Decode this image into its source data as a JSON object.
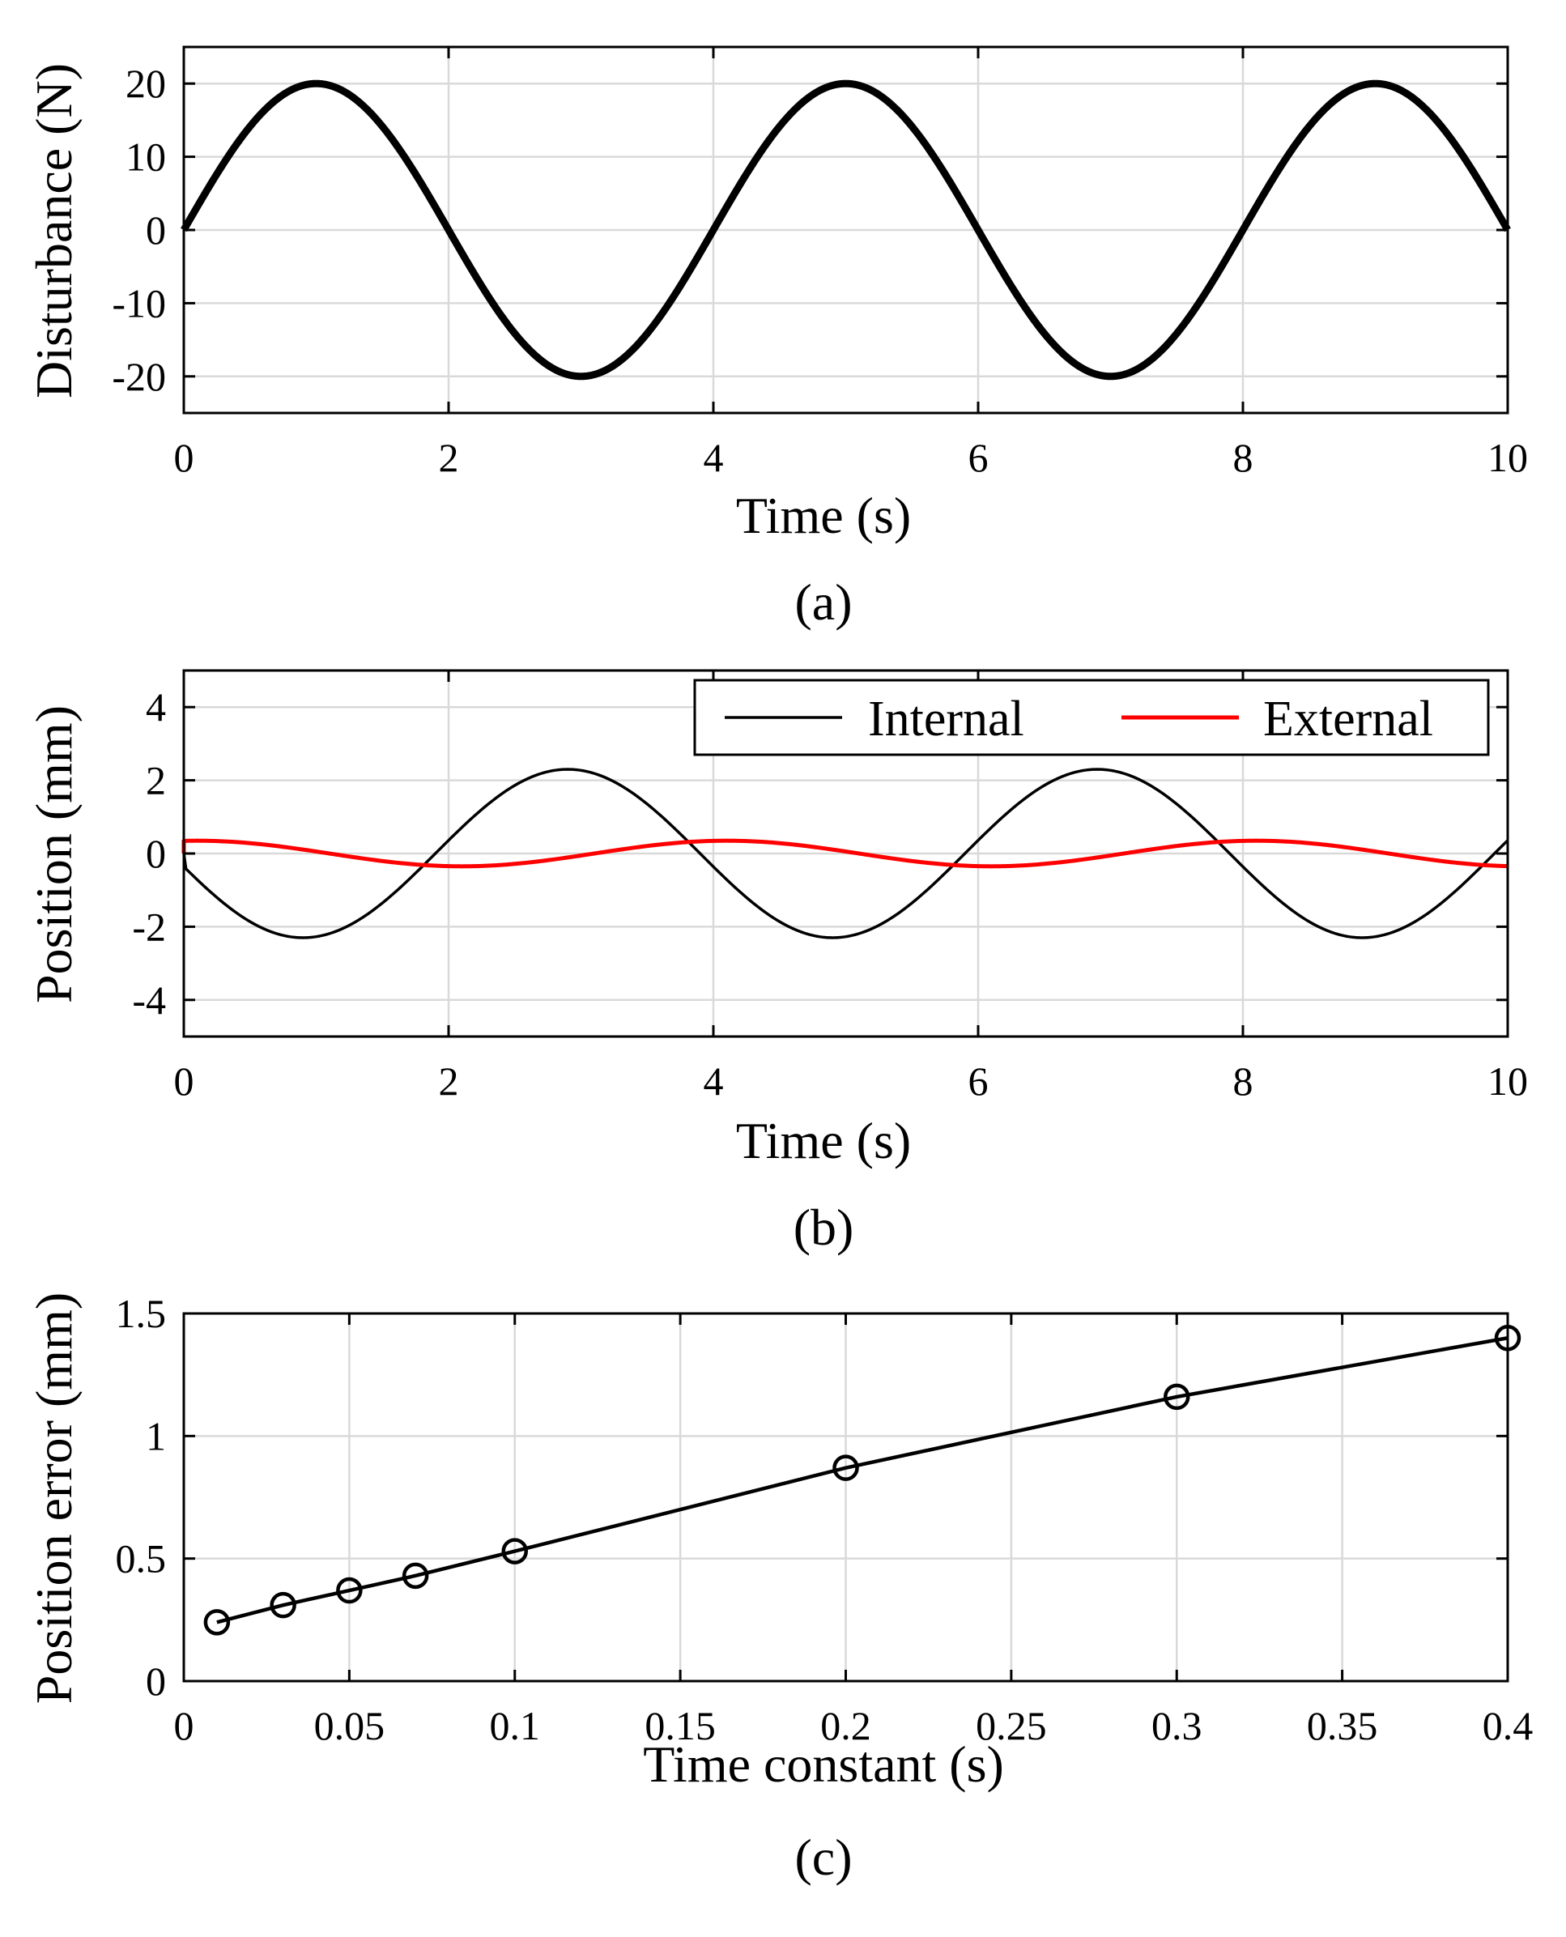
{
  "chart_data": [
    {
      "type": "line",
      "panel_label": "(a)",
      "xlabel": "Time (s)",
      "ylabel": "Disturbance (N)",
      "xlim": [
        0,
        10
      ],
      "ylim": [
        -25,
        25
      ],
      "xticks": [
        0,
        2,
        4,
        6,
        8,
        10
      ],
      "yticks": [
        -20,
        -10,
        0,
        10,
        20
      ],
      "xtick_labels": [
        "0",
        "2",
        "4",
        "6",
        "8",
        "10"
      ],
      "ytick_labels": [
        "-20",
        "-10",
        "0",
        "10",
        "20"
      ],
      "grid": true,
      "series": [
        {
          "name": "Disturbance",
          "color": "#000000",
          "style": "thick",
          "function": "sine",
          "amplitude": 20,
          "period": 4,
          "phase": 0,
          "x_range": [
            0,
            10
          ]
        }
      ]
    },
    {
      "type": "line",
      "panel_label": "(b)",
      "xlabel": "Time (s)",
      "ylabel": "Position (mm)",
      "xlim": [
        0,
        10
      ],
      "ylim": [
        -5,
        5
      ],
      "xticks": [
        0,
        2,
        4,
        6,
        8,
        10
      ],
      "yticks": [
        -4,
        -2,
        0,
        2,
        4
      ],
      "xtick_labels": [
        "0",
        "2",
        "4",
        "6",
        "8",
        "10"
      ],
      "ytick_labels": [
        "-4",
        "-2",
        "0",
        "2",
        "4"
      ],
      "grid": true,
      "legend": {
        "placement": "top-right",
        "orientation": "horizontal"
      },
      "series": [
        {
          "name": "Internal",
          "color": "#000000",
          "style": "thin",
          "function": "sine",
          "amplitude": -2.3,
          "period": 4,
          "phase": -0.1,
          "x_range": [
            0,
            10
          ]
        },
        {
          "name": "External",
          "color": "#ff0000",
          "style": "medium",
          "function": "cosine",
          "amplitude": 0.35,
          "period": 4,
          "phase": 0.1,
          "x_range": [
            0,
            10
          ]
        }
      ]
    },
    {
      "type": "line",
      "panel_label": "(c)",
      "xlabel": "Time constant (s)",
      "ylabel": "Position error (mm)",
      "xlim": [
        0,
        0.4
      ],
      "ylim": [
        0,
        1.5
      ],
      "xticks": [
        0,
        0.05,
        0.1,
        0.15,
        0.2,
        0.25,
        0.3,
        0.35,
        0.4
      ],
      "yticks": [
        0,
        0.5,
        1,
        1.5
      ],
      "xtick_labels": [
        "0",
        "0.05",
        "0.1",
        "0.15",
        "0.2",
        "0.25",
        "0.3",
        "0.35",
        "0.4"
      ],
      "ytick_labels": [
        "0",
        "0.5",
        "1",
        "1.5"
      ],
      "grid": true,
      "series": [
        {
          "name": "Position error",
          "color": "#000000",
          "style": "markers",
          "marker": "circle",
          "x": [
            0.01,
            0.03,
            0.05,
            0.07,
            0.1,
            0.2,
            0.3,
            0.4
          ],
          "y": [
            0.24,
            0.31,
            0.37,
            0.43,
            0.53,
            0.87,
            1.16,
            1.4
          ]
        }
      ]
    }
  ]
}
